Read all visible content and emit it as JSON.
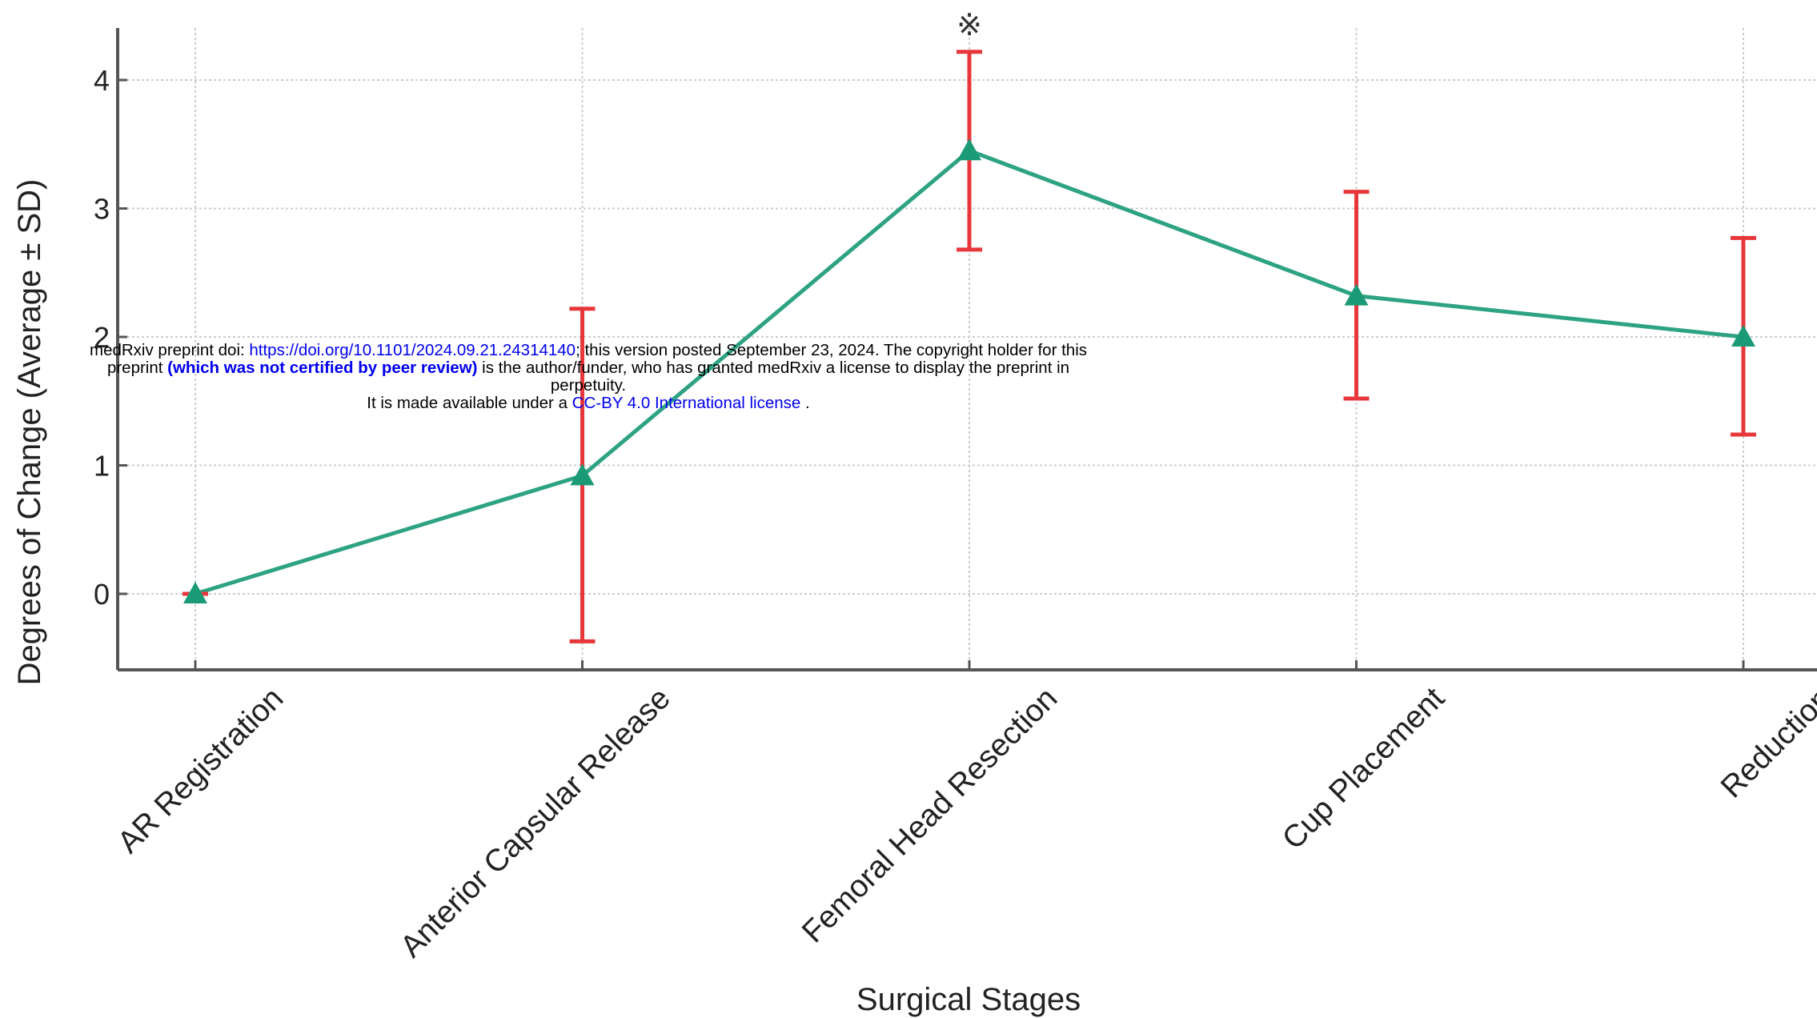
{
  "chart_data": {
    "type": "line",
    "title": "",
    "xlabel": "Surgical Stages",
    "ylabel": "Degrees of Change (Average ± SD)",
    "categories": [
      "AR Registration",
      "Anterior Capsular Release",
      "Femoral Head Resection",
      "Cup Placement",
      "Reduction"
    ],
    "values": [
      0.0,
      0.92,
      3.45,
      2.32,
      2.0
    ],
    "error_low": [
      0.0,
      -0.37,
      2.68,
      1.52,
      1.24
    ],
    "error_high": [
      0.0,
      2.22,
      4.22,
      3.13,
      2.77
    ],
    "ylim": [
      -0.6,
      4.4
    ],
    "yticks": [
      0,
      1,
      2,
      3,
      4
    ],
    "grid": true,
    "significance_marker": "※",
    "significance_index": 2,
    "colors": {
      "line": "#2ea383",
      "marker": "#1a9a75",
      "error": "#e8373a",
      "grid": "#cccccc",
      "axis": "#555555"
    }
  },
  "watermark": {
    "line1_prefix": "medRxiv preprint doi: ",
    "doi_link": "https://doi.org/10.1101/2024.09.21.24314140",
    "line1_suffix": "; this version posted September 23, 2024. The copyright holder for this",
    "line2_prefix": "preprint ",
    "peer_review": "(which was not certified by peer review)",
    "line2_suffix": " is the author/funder, who has granted medRxiv a license to display the preprint in",
    "line3": "perpetuity.",
    "line4_prefix": "It is made available under a ",
    "license_link": "CC-BY 4.0 International license",
    "line4_suffix": " ."
  }
}
